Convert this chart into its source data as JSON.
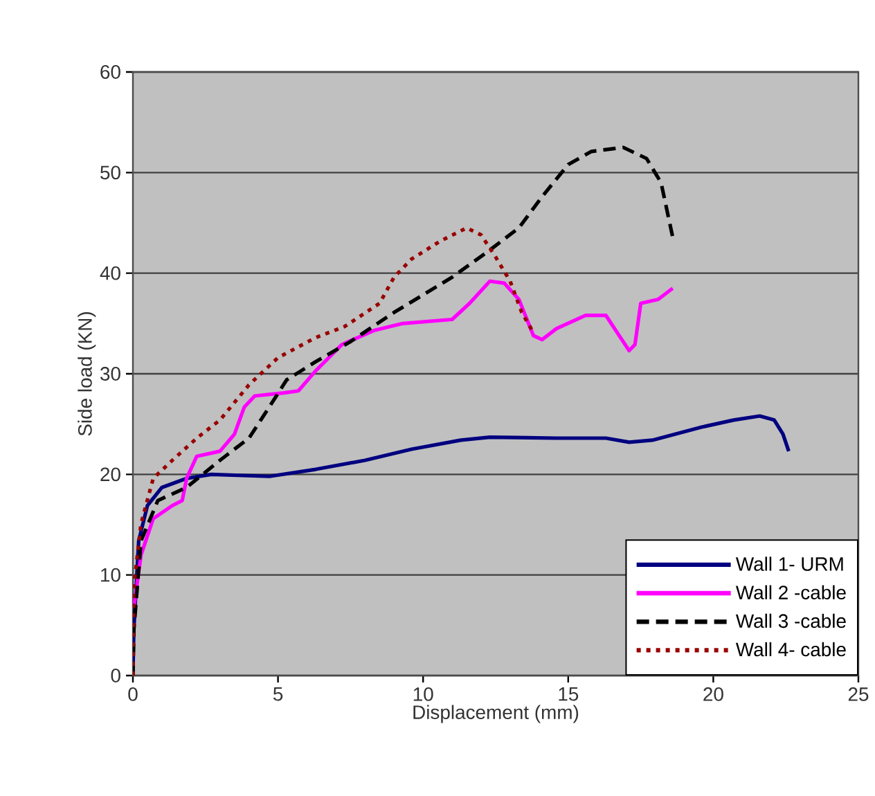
{
  "chart_data": {
    "type": "line",
    "xlabel": "Displacement (mm)",
    "ylabel": "Side load (KN)",
    "xlim": [
      0,
      25
    ],
    "ylim": [
      0,
      60
    ],
    "xticks": [
      0,
      5,
      10,
      15,
      20,
      25
    ],
    "yticks": [
      0,
      10,
      20,
      30,
      40,
      50,
      60
    ],
    "grid": "y",
    "legend": "bottom right",
    "marker": "none",
    "series": [
      {
        "name": "Wall 1- URM",
        "color": "#000080",
        "line_style": "solid",
        "x": [
          0,
          0.03,
          0.2,
          0.5,
          1,
          1.85,
          2.7,
          4.7,
          6.3,
          8,
          9.6,
          11.3,
          12.3,
          14.6,
          16.3,
          17.1,
          17.9,
          19.6,
          20.7,
          21.6,
          22.1,
          22.4,
          22.6
        ],
        "values": [
          0,
          4.5,
          13.4,
          16.9,
          18.7,
          19.6,
          20,
          19.8,
          20.5,
          21.4,
          22.5,
          23.4,
          23.7,
          23.6,
          23.6,
          23.2,
          23.4,
          24.7,
          25.4,
          25.8,
          25.4,
          24,
          22.3
        ]
      },
      {
        "name": "Wall 2 -cable",
        "color": "#ff00ff",
        "line_style": "solid",
        "x": [
          0.03,
          0.28,
          0.7,
          1.36,
          1.7,
          1.85,
          2.2,
          3,
          3.5,
          3.84,
          4.2,
          5.2,
          5.7,
          6.3,
          7.2,
          8.3,
          9.3,
          11,
          11.6,
          12.3,
          12.8,
          13.3,
          13.8,
          14.1,
          14.6,
          15.6,
          16.3,
          17.1,
          17.3,
          17.5,
          18.1,
          18.6
        ],
        "values": [
          6.7,
          12,
          15.6,
          16.9,
          17.4,
          19.6,
          21.8,
          22.3,
          24,
          26.7,
          27.8,
          28.1,
          28.3,
          30.3,
          32.9,
          34.3,
          35,
          35.4,
          37,
          39.2,
          39,
          37.4,
          33.8,
          33.4,
          34.5,
          35.8,
          35.8,
          32.3,
          32.9,
          37,
          37.4,
          38.5
        ]
      },
      {
        "name": "Wall 3 -cable",
        "color": "#000000",
        "line_style": "dashed",
        "x": [
          0,
          0.03,
          0.28,
          0.86,
          1.85,
          3,
          4,
          4.7,
          5.3,
          6.3,
          7.5,
          9,
          11,
          12.3,
          13.3,
          14.1,
          15,
          15.8,
          16.9,
          17.7,
          18.2,
          18.4,
          18.6
        ],
        "values": [
          0,
          4.5,
          13.4,
          17.4,
          18.7,
          21.4,
          23.6,
          26.7,
          29.4,
          31.2,
          33.2,
          36.1,
          39.6,
          42.3,
          44.5,
          47.6,
          50.8,
          52.1,
          52.5,
          51.4,
          49,
          46.3,
          43.6
        ]
      },
      {
        "name": "Wall 4- cable",
        "color": "#990000",
        "line_style": "dotted",
        "x": [
          0,
          0.03,
          0.28,
          0.7,
          1.36,
          2.2,
          3,
          4,
          5,
          6.3,
          7.3,
          8.5,
          9,
          9.6,
          10.6,
          11.5,
          12,
          12.5,
          13,
          13.4,
          13.8
        ],
        "values": [
          0,
          8.9,
          15.1,
          19.6,
          21.4,
          23.6,
          25.4,
          28.9,
          31.6,
          33.6,
          34.7,
          37,
          39.6,
          41.4,
          43.2,
          44.5,
          43.8,
          41.6,
          39.2,
          36.1,
          34.1
        ]
      }
    ]
  }
}
